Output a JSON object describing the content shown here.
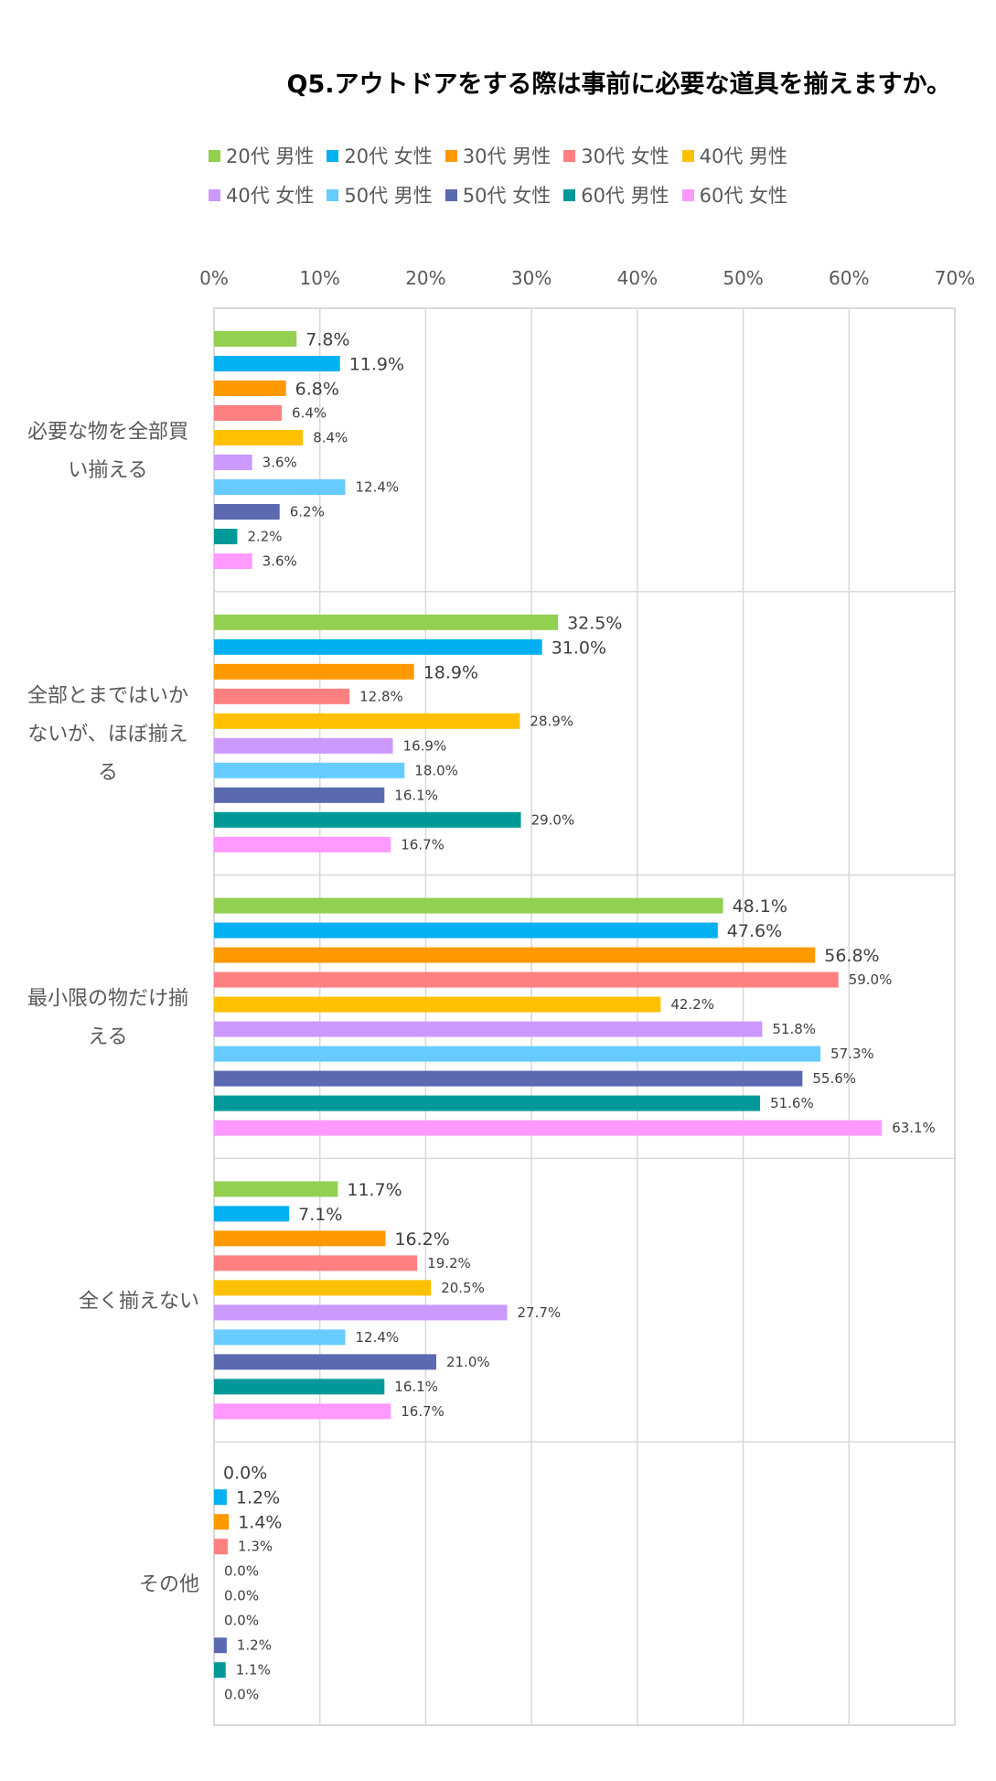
{
  "chart_data": {
    "type": "bar",
    "orientation": "horizontal",
    "title": "Q5.アウトドアをする際は事前に必要な道具を揃えますか。",
    "xlim": [
      0,
      70
    ],
    "x_ticks": [
      "0%",
      "10%",
      "20%",
      "30%",
      "40%",
      "50%",
      "60%",
      "70%"
    ],
    "grid": true,
    "legend_position": "top",
    "categories": [
      "必要な物を全部買い揃える",
      "全部とまではいかないが、ほぼ揃える",
      "最小限の物だけ揃える",
      "全く揃えない",
      "その他"
    ],
    "series": [
      {
        "name": "20代 男性",
        "color": "#92d050",
        "values": [
          7.8,
          32.5,
          48.1,
          11.7,
          0.0
        ],
        "labels": [
          "7.8%",
          "32.5%",
          "48.1%",
          "11.7%",
          "0.0%"
        ]
      },
      {
        "name": "20代 女性",
        "color": "#00b0f0",
        "values": [
          11.9,
          31.0,
          47.6,
          7.1,
          1.2
        ],
        "labels": [
          "11.9%",
          "31.0%",
          "47.6%",
          "7.1%",
          "1.2%"
        ]
      },
      {
        "name": "30代 男性",
        "color": "#ff9900",
        "values": [
          6.8,
          18.9,
          56.8,
          16.2,
          1.4
        ],
        "labels": [
          "6.8%",
          "18.9%",
          "56.8%",
          "16.2%",
          "1.4%"
        ]
      },
      {
        "name": "30代 女性",
        "color": "#ff8080",
        "values": [
          6.4,
          12.8,
          59.0,
          19.2,
          1.3
        ],
        "labels": [
          "6.4%",
          "12.8%",
          "59.0%",
          "19.2%",
          "1.3%"
        ]
      },
      {
        "name": "40代 男性",
        "color": "#ffc000",
        "values": [
          8.4,
          28.9,
          42.2,
          20.5,
          0.0
        ],
        "labels": [
          "8.4%",
          "28.9%",
          "42.2%",
          "20.5%",
          "0.0%"
        ]
      },
      {
        "name": "40代 女性",
        "color": "#cc99ff",
        "values": [
          3.6,
          16.9,
          51.8,
          27.7,
          0.0
        ],
        "labels": [
          "3.6%",
          "16.9%",
          "51.8%",
          "27.7%",
          "0.0%"
        ]
      },
      {
        "name": "50代 男性",
        "color": "#66ccff",
        "values": [
          12.4,
          18.0,
          57.3,
          12.4,
          0.0
        ],
        "labels": [
          "12.4%",
          "18.0%",
          "57.3%",
          "12.4%",
          "0.0%"
        ]
      },
      {
        "name": "50代 女性",
        "color": "#5b6ab0",
        "values": [
          6.2,
          16.1,
          55.6,
          21.0,
          1.2
        ],
        "labels": [
          "6.2%",
          "16.1%",
          "55.6%",
          "21.0%",
          "1.2%"
        ]
      },
      {
        "name": "60代 男性",
        "color": "#009999",
        "values": [
          2.2,
          29.0,
          51.6,
          16.1,
          1.1
        ],
        "labels": [
          "2.2%",
          "29.0%",
          "51.6%",
          "16.1%",
          "1.1%"
        ]
      },
      {
        "name": "60代 女性",
        "color": "#ff99ff",
        "values": [
          3.6,
          16.7,
          63.1,
          16.7,
          0.0
        ],
        "labels": [
          "3.6%",
          "16.7%",
          "63.1%",
          "16.7%",
          "0.0%"
        ]
      }
    ]
  }
}
